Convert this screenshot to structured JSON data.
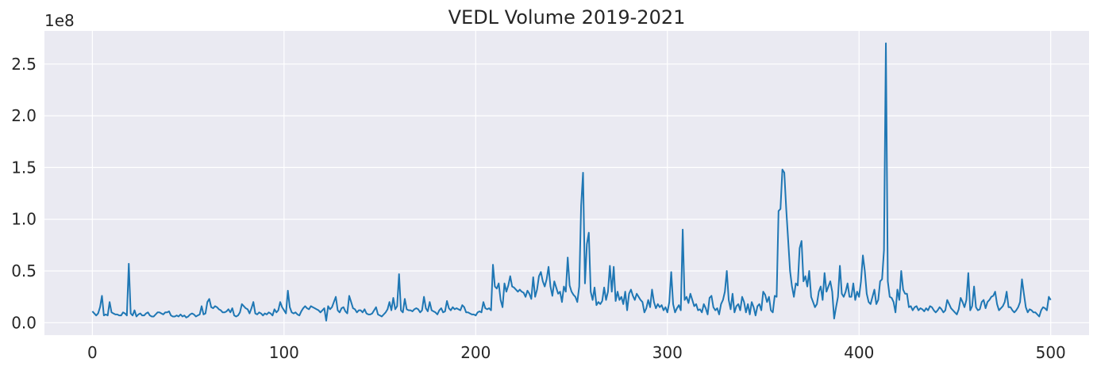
{
  "chart_data": {
    "type": "line",
    "title": "VEDL Volume 2019-2021",
    "xlabel": "",
    "ylabel": "",
    "y_offset_label": "1e8",
    "xlim": [
      -25,
      520
    ],
    "ylim": [
      -0.12,
      2.82
    ],
    "y_scale_factor": 100000000,
    "grid": true,
    "xticks": [
      0,
      100,
      200,
      300,
      400,
      500
    ],
    "xtick_labels": [
      "0",
      "100",
      "200",
      "300",
      "400",
      "500"
    ],
    "yticks": [
      0.0,
      0.5,
      1.0,
      1.5,
      2.0,
      2.5
    ],
    "ytick_labels": [
      "0.0",
      "0.5",
      "1.0",
      "1.5",
      "2.0",
      "2.5"
    ],
    "colors": {
      "background": "#eaeaf2",
      "grid": "#ffffff",
      "line": "#1f77b4"
    },
    "series": [
      {
        "x_start": 0,
        "x_step": 1,
        "values": [
          0.11,
          0.09,
          0.07,
          0.09,
          0.15,
          0.26,
          0.07,
          0.08,
          0.07,
          0.2,
          0.1,
          0.09,
          0.08,
          0.08,
          0.07,
          0.07,
          0.1,
          0.09,
          0.07,
          0.57,
          0.09,
          0.07,
          0.12,
          0.06,
          0.08,
          0.09,
          0.07,
          0.07,
          0.09,
          0.1,
          0.07,
          0.06,
          0.06,
          0.08,
          0.1,
          0.1,
          0.09,
          0.08,
          0.1,
          0.1,
          0.11,
          0.07,
          0.06,
          0.06,
          0.07,
          0.06,
          0.08,
          0.06,
          0.07,
          0.05,
          0.06,
          0.08,
          0.09,
          0.08,
          0.06,
          0.07,
          0.08,
          0.16,
          0.08,
          0.09,
          0.2,
          0.23,
          0.15,
          0.14,
          0.16,
          0.15,
          0.13,
          0.12,
          0.1,
          0.1,
          0.11,
          0.13,
          0.1,
          0.14,
          0.07,
          0.06,
          0.07,
          0.1,
          0.18,
          0.16,
          0.14,
          0.13,
          0.09,
          0.14,
          0.2,
          0.09,
          0.08,
          0.1,
          0.09,
          0.07,
          0.09,
          0.08,
          0.1,
          0.09,
          0.07,
          0.13,
          0.1,
          0.12,
          0.2,
          0.15,
          0.12,
          0.09,
          0.31,
          0.15,
          0.1,
          0.09,
          0.1,
          0.08,
          0.07,
          0.11,
          0.14,
          0.16,
          0.14,
          0.13,
          0.16,
          0.15,
          0.14,
          0.13,
          0.12,
          0.1,
          0.12,
          0.14,
          0.02,
          0.16,
          0.13,
          0.15,
          0.2,
          0.25,
          0.12,
          0.1,
          0.14,
          0.15,
          0.11,
          0.09,
          0.26,
          0.2,
          0.14,
          0.13,
          0.1,
          0.12,
          0.12,
          0.1,
          0.13,
          0.09,
          0.08,
          0.08,
          0.09,
          0.12,
          0.15,
          0.08,
          0.07,
          0.06,
          0.08,
          0.1,
          0.13,
          0.2,
          0.12,
          0.24,
          0.13,
          0.16,
          0.47,
          0.12,
          0.1,
          0.23,
          0.13,
          0.12,
          0.12,
          0.11,
          0.13,
          0.14,
          0.13,
          0.1,
          0.12,
          0.25,
          0.14,
          0.11,
          0.2,
          0.12,
          0.11,
          0.1,
          0.08,
          0.12,
          0.14,
          0.1,
          0.11,
          0.21,
          0.14,
          0.12,
          0.15,
          0.13,
          0.14,
          0.13,
          0.12,
          0.17,
          0.15,
          0.1,
          0.1,
          0.09,
          0.08,
          0.08,
          0.07,
          0.1,
          0.11,
          0.1,
          0.2,
          0.14,
          0.13,
          0.14,
          0.12,
          0.56,
          0.35,
          0.33,
          0.38,
          0.22,
          0.15,
          0.38,
          0.3,
          0.36,
          0.45,
          0.35,
          0.34,
          0.32,
          0.3,
          0.32,
          0.3,
          0.29,
          0.25,
          0.31,
          0.28,
          0.23,
          0.44,
          0.25,
          0.32,
          0.45,
          0.49,
          0.4,
          0.35,
          0.42,
          0.54,
          0.35,
          0.26,
          0.4,
          0.34,
          0.28,
          0.3,
          0.2,
          0.35,
          0.3,
          0.63,
          0.36,
          0.3,
          0.27,
          0.25,
          0.2,
          0.35,
          1.13,
          1.45,
          0.38,
          0.76,
          0.87,
          0.3,
          0.22,
          0.34,
          0.17,
          0.2,
          0.18,
          0.21,
          0.34,
          0.22,
          0.3,
          0.55,
          0.3,
          0.54,
          0.21,
          0.3,
          0.22,
          0.25,
          0.18,
          0.3,
          0.12,
          0.28,
          0.32,
          0.26,
          0.22,
          0.28,
          0.25,
          0.22,
          0.2,
          0.1,
          0.14,
          0.22,
          0.15,
          0.32,
          0.2,
          0.14,
          0.18,
          0.15,
          0.17,
          0.12,
          0.15,
          0.1,
          0.2,
          0.49,
          0.18,
          0.1,
          0.14,
          0.17,
          0.12,
          0.9,
          0.22,
          0.25,
          0.19,
          0.28,
          0.22,
          0.16,
          0.18,
          0.12,
          0.13,
          0.1,
          0.18,
          0.14,
          0.08,
          0.24,
          0.26,
          0.15,
          0.12,
          0.14,
          0.08,
          0.18,
          0.22,
          0.3,
          0.5,
          0.22,
          0.13,
          0.28,
          0.1,
          0.16,
          0.18,
          0.12,
          0.25,
          0.2,
          0.1,
          0.18,
          0.08,
          0.2,
          0.15,
          0.07,
          0.16,
          0.18,
          0.12,
          0.3,
          0.27,
          0.2,
          0.25,
          0.12,
          0.1,
          0.26,
          0.25,
          1.08,
          1.1,
          1.48,
          1.45,
          1.1,
          0.8,
          0.5,
          0.35,
          0.25,
          0.38,
          0.36,
          0.72,
          0.79,
          0.4,
          0.45,
          0.35,
          0.5,
          0.25,
          0.2,
          0.15,
          0.18,
          0.3,
          0.35,
          0.22,
          0.48,
          0.3,
          0.35,
          0.4,
          0.3,
          0.04,
          0.15,
          0.25,
          0.55,
          0.28,
          0.25,
          0.3,
          0.38,
          0.25,
          0.25,
          0.38,
          0.22,
          0.3,
          0.25,
          0.4,
          0.65,
          0.5,
          0.28,
          0.2,
          0.18,
          0.25,
          0.32,
          0.18,
          0.22,
          0.4,
          0.42,
          0.7,
          2.7,
          0.4,
          0.25,
          0.24,
          0.2,
          0.1,
          0.32,
          0.22,
          0.5,
          0.32,
          0.28,
          0.28,
          0.15,
          0.16,
          0.12,
          0.15,
          0.16,
          0.12,
          0.14,
          0.13,
          0.11,
          0.14,
          0.12,
          0.16,
          0.15,
          0.12,
          0.1,
          0.12,
          0.15,
          0.13,
          0.1,
          0.12,
          0.22,
          0.18,
          0.14,
          0.12,
          0.1,
          0.08,
          0.13,
          0.24,
          0.2,
          0.15,
          0.22,
          0.48,
          0.12,
          0.16,
          0.35,
          0.15,
          0.12,
          0.13,
          0.2,
          0.22,
          0.14,
          0.2,
          0.22,
          0.25,
          0.26,
          0.3,
          0.18,
          0.12,
          0.14,
          0.16,
          0.2,
          0.3,
          0.15,
          0.15,
          0.12,
          0.1,
          0.12,
          0.15,
          0.2,
          0.42,
          0.28,
          0.15,
          0.1,
          0.13,
          0.12,
          0.1,
          0.1,
          0.08,
          0.06,
          0.12,
          0.15,
          0.14,
          0.12,
          0.25,
          0.22
        ]
      }
    ]
  }
}
